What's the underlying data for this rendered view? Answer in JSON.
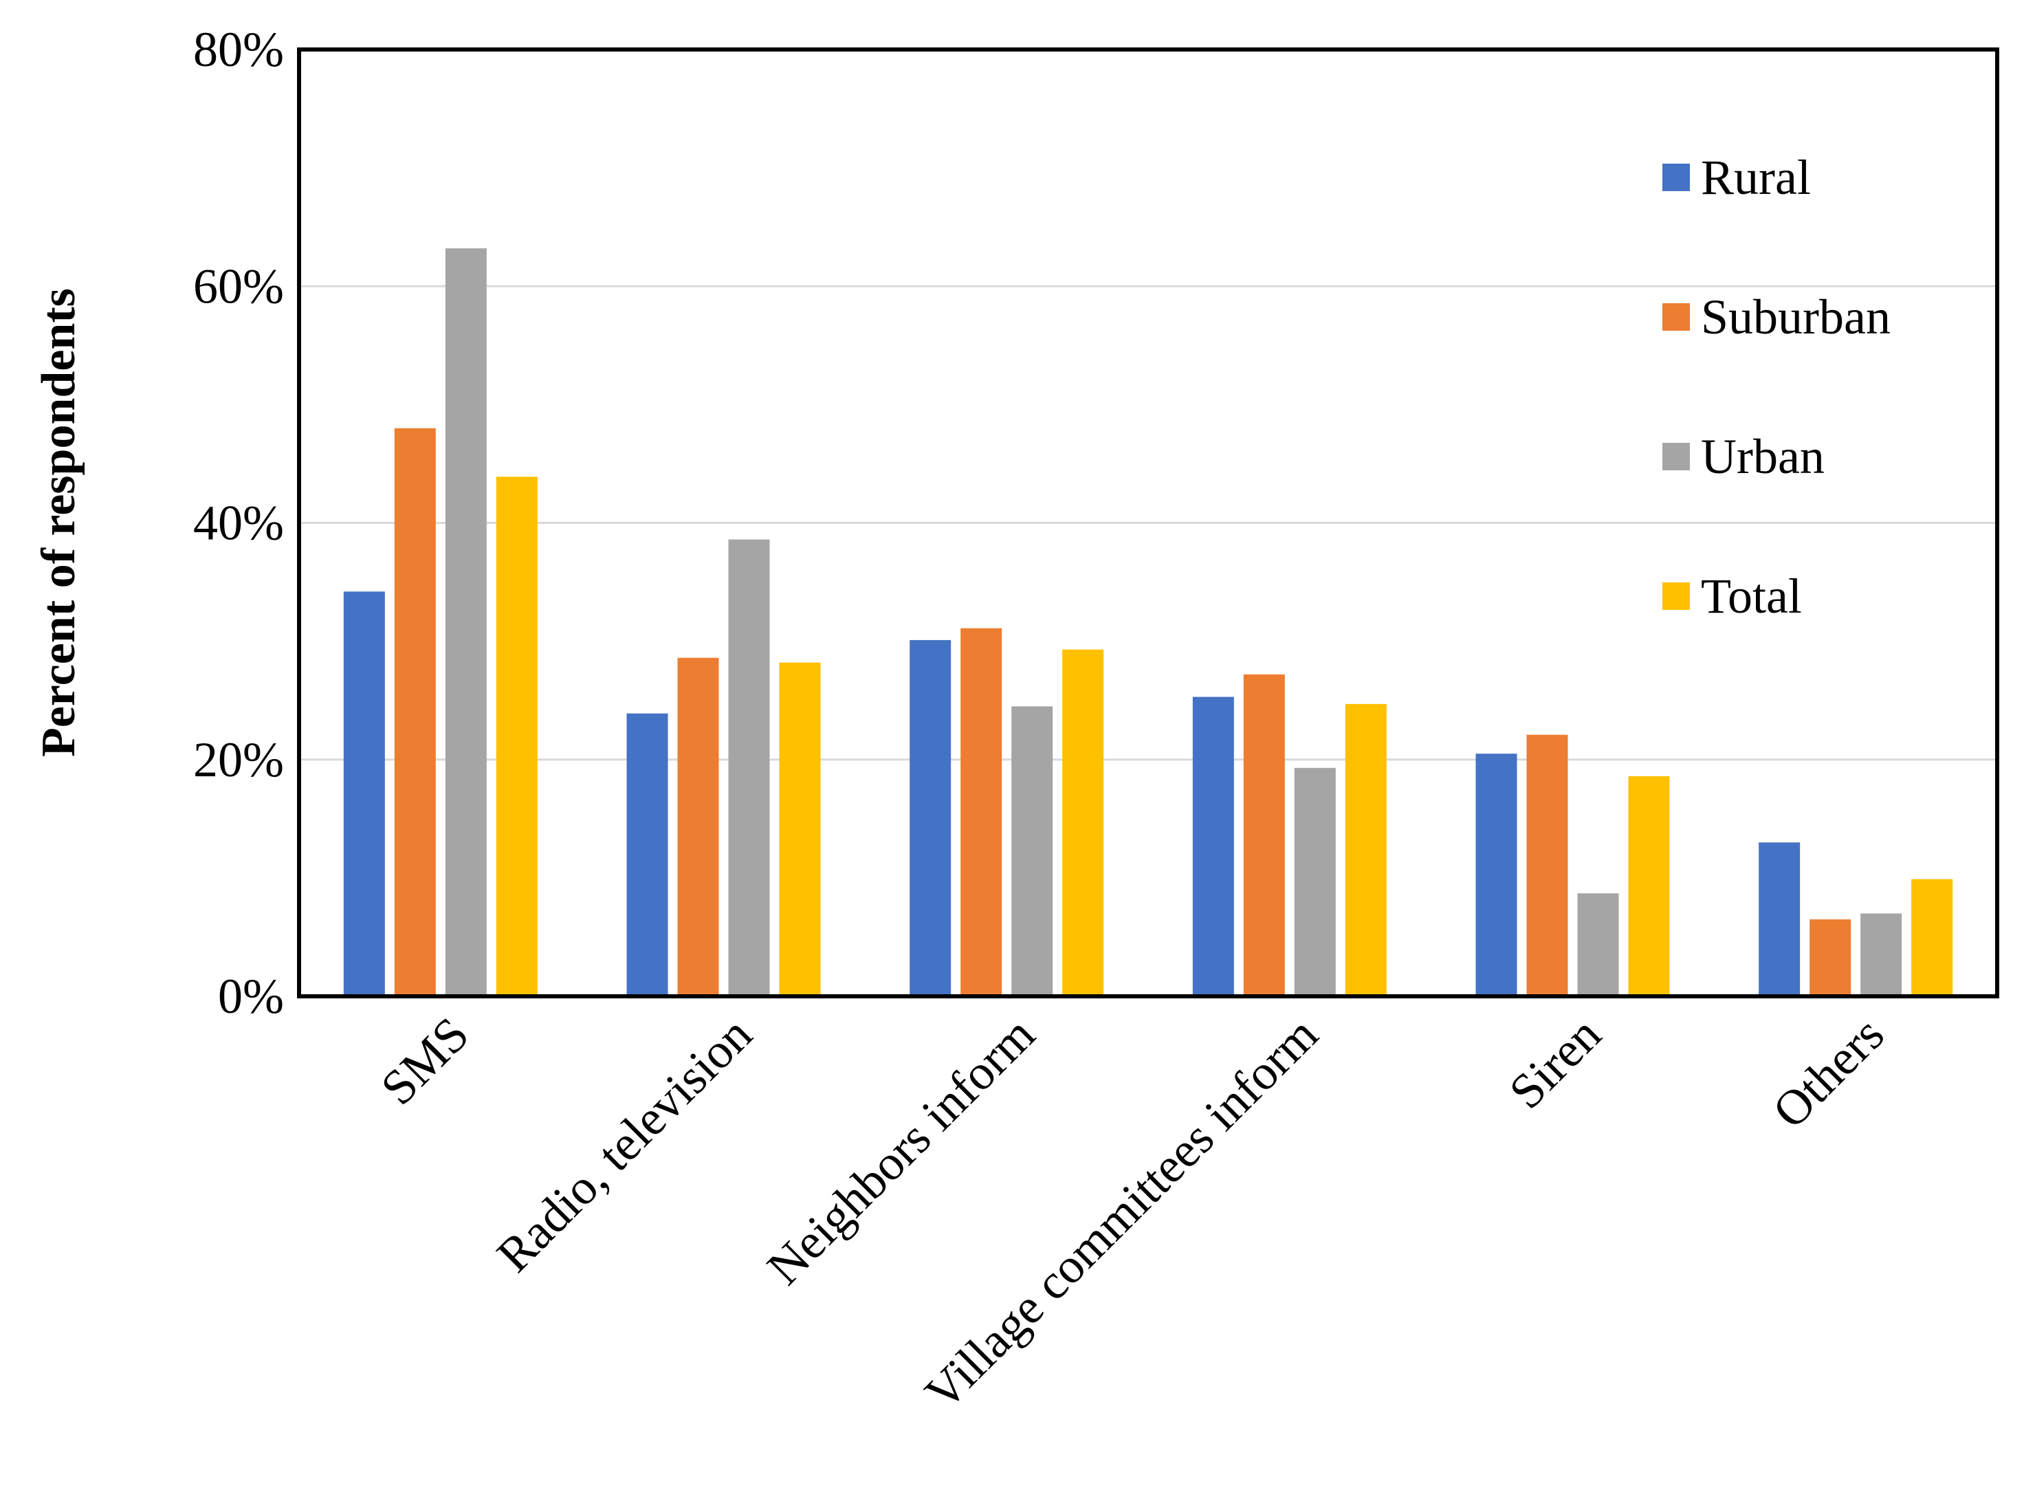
{
  "chart_data": {
    "type": "bar",
    "title": "",
    "xlabel": "",
    "ylabel": "Percent of respondents",
    "ylim": [
      0,
      80
    ],
    "yticks": [
      "0%",
      "20%",
      "40%",
      "60%",
      "80%"
    ],
    "ytick_values": [
      0,
      20,
      40,
      60,
      80
    ],
    "grid": true,
    "legend_position": "top-right",
    "categories": [
      "SMS",
      "Radio, television",
      "Neighbors inform",
      "Village committees inform",
      "Siren",
      "Others"
    ],
    "series": [
      {
        "name": "Rural",
        "color": "#4472C4",
        "values": [
          34.2,
          23.9,
          30.1,
          25.3,
          20.5,
          13.0
        ]
      },
      {
        "name": "Suburban",
        "color": "#ED7D31",
        "values": [
          48.0,
          28.6,
          31.1,
          27.2,
          22.1,
          6.5
        ]
      },
      {
        "name": "Urban",
        "color": "#A5A5A5",
        "values": [
          63.2,
          38.6,
          24.5,
          19.3,
          8.7,
          7.0
        ]
      },
      {
        "name": "Total",
        "color": "#FFC000",
        "values": [
          43.9,
          28.2,
          29.3,
          24.7,
          18.6,
          9.9
        ]
      }
    ]
  }
}
